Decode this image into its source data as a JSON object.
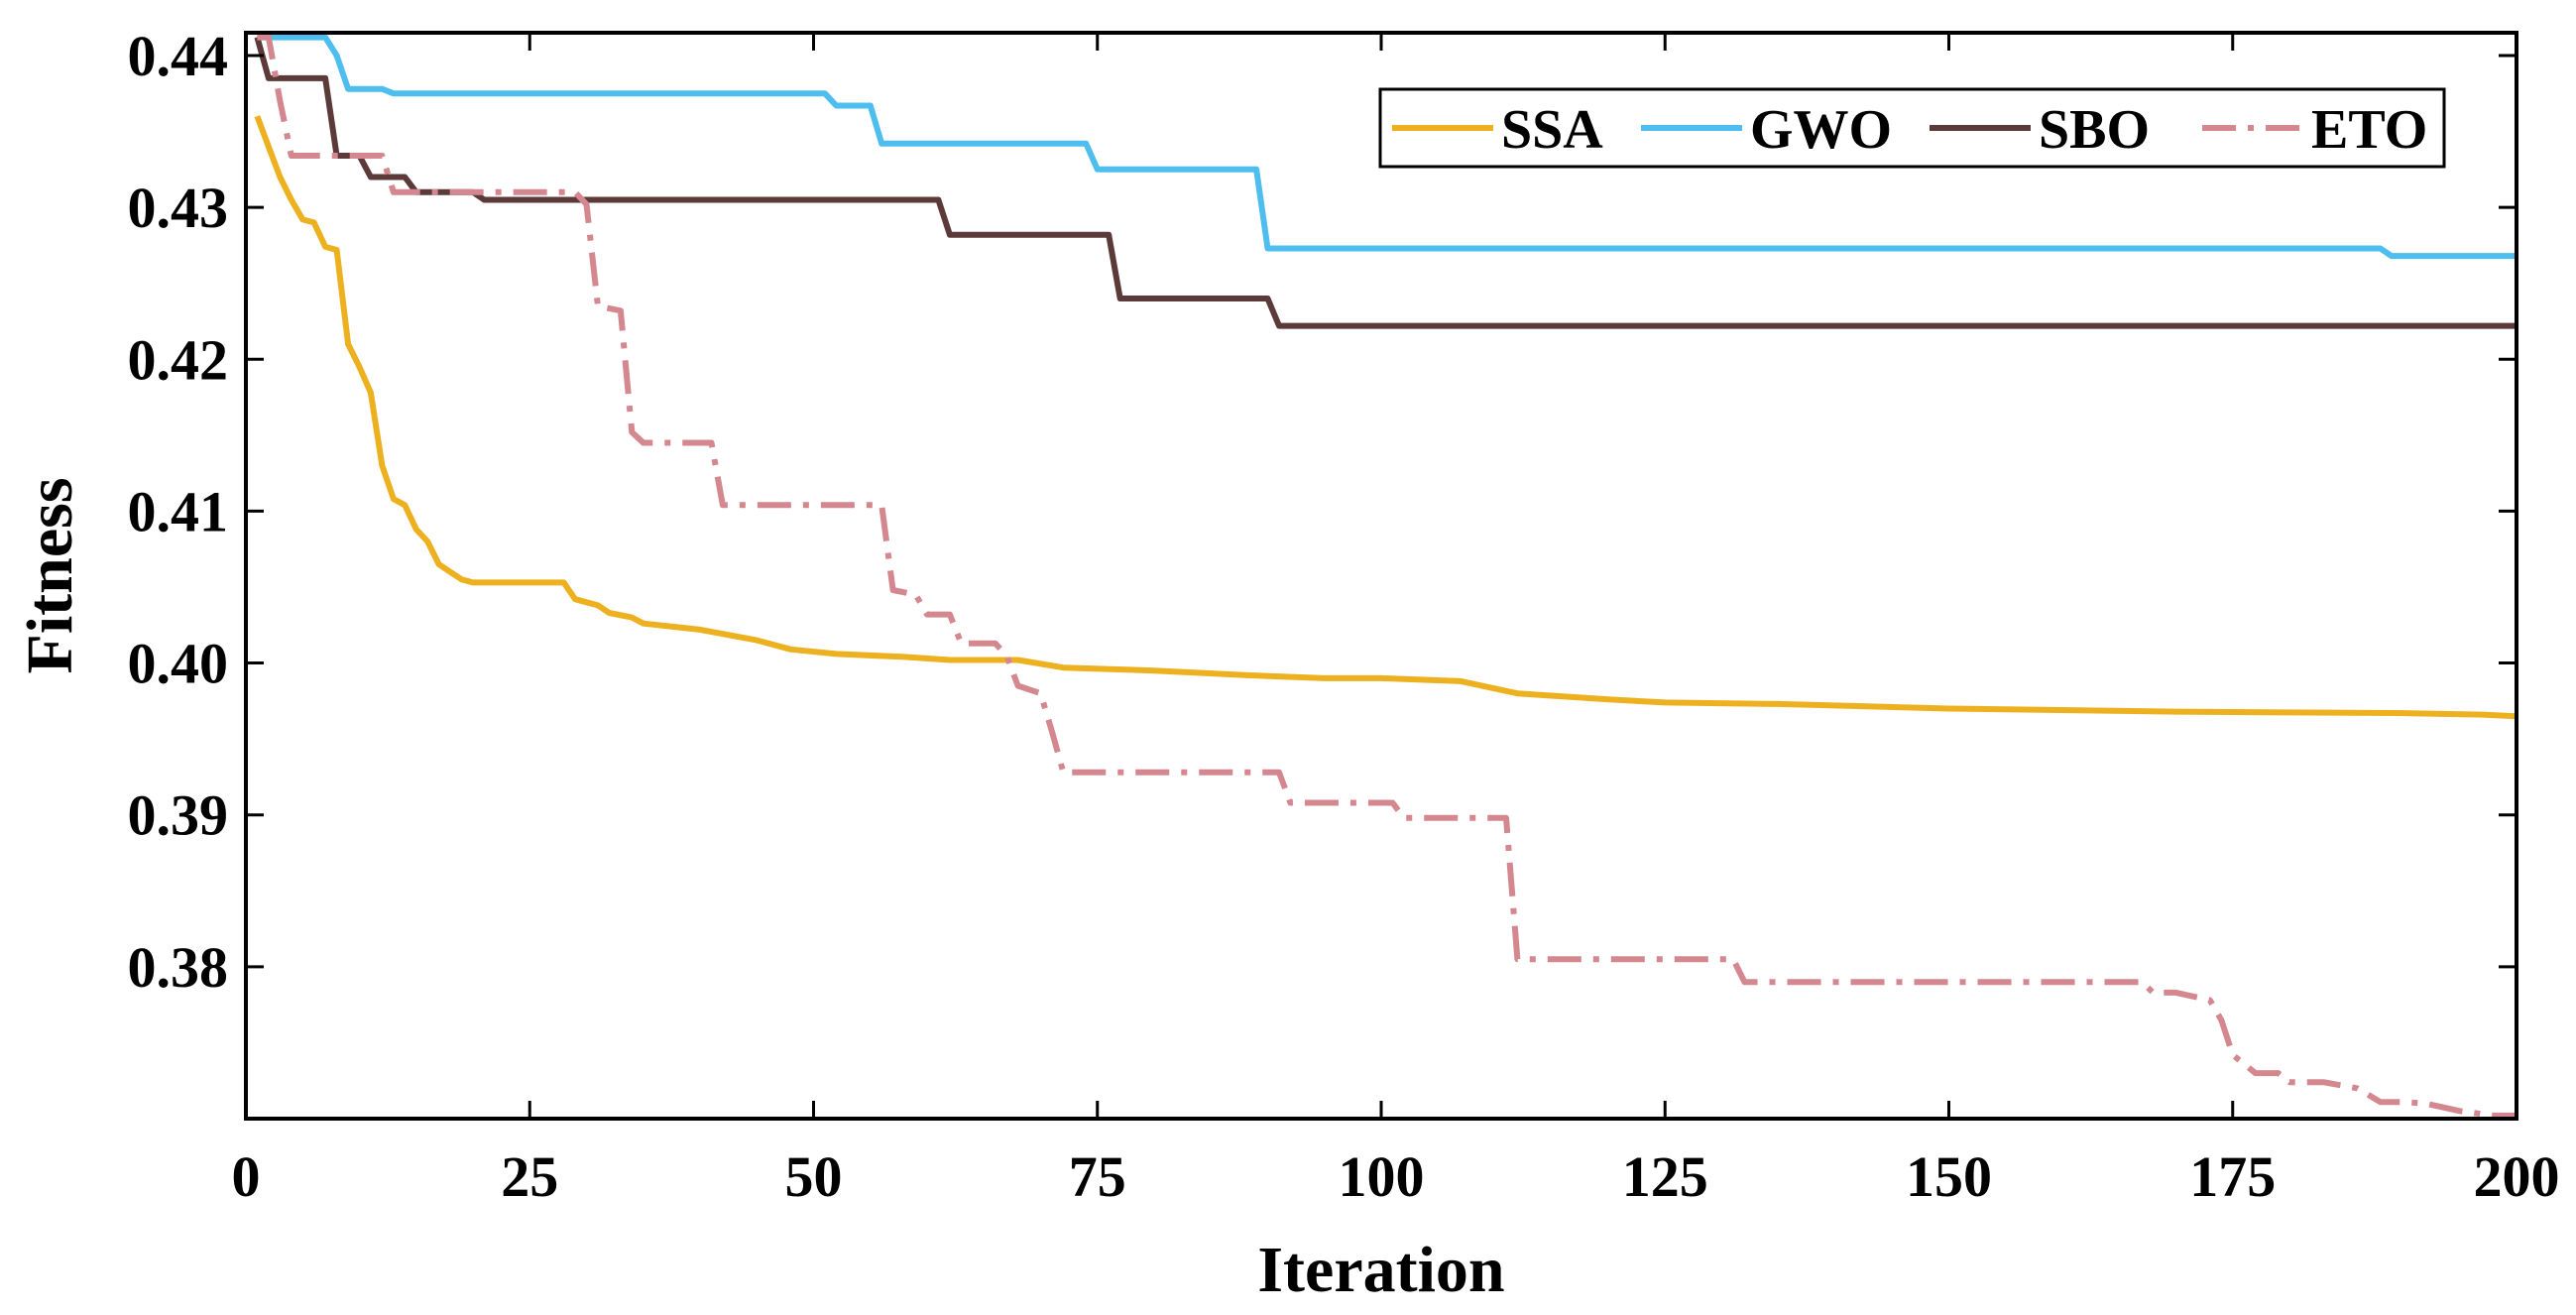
{
  "chart_data": {
    "type": "line",
    "title": "",
    "xlabel": "Iteration",
    "ylabel": "Fitness",
    "xlim": [
      0,
      200
    ],
    "ylim": [
      0.37,
      0.4415
    ],
    "xticks": [
      0,
      25,
      50,
      75,
      100,
      125,
      150,
      175,
      200
    ],
    "xtick_labels": [
      "0",
      "25",
      "50",
      "75",
      "100",
      "125",
      "150",
      "175",
      "200"
    ],
    "yticks": [
      0.38,
      0.39,
      0.4,
      0.41,
      0.42,
      0.43,
      0.44
    ],
    "ytick_labels": [
      "0.38",
      "0.39",
      "0.40",
      "0.41",
      "0.42",
      "0.43",
      "0.44"
    ],
    "grid": false,
    "legend_position": "top-right",
    "series": [
      {
        "name": "SSA",
        "color": "#EDB120",
        "dash": "solid",
        "points": [
          [
            1,
            0.436
          ],
          [
            2,
            0.434
          ],
          [
            3,
            0.432
          ],
          [
            4,
            0.4305
          ],
          [
            5,
            0.4292
          ],
          [
            6,
            0.429
          ],
          [
            7,
            0.4274
          ],
          [
            8,
            0.4272
          ],
          [
            9,
            0.421
          ],
          [
            10,
            0.4195
          ],
          [
            11,
            0.4178
          ],
          [
            12,
            0.413
          ],
          [
            13,
            0.4108
          ],
          [
            14,
            0.4104
          ],
          [
            15,
            0.4088
          ],
          [
            16,
            0.408
          ],
          [
            17,
            0.4065
          ],
          [
            18,
            0.406
          ],
          [
            19,
            0.4055
          ],
          [
            20,
            0.4053
          ],
          [
            28,
            0.4053
          ],
          [
            29,
            0.4042
          ],
          [
            30,
            0.404
          ],
          [
            31,
            0.4038
          ],
          [
            32,
            0.4033
          ],
          [
            34,
            0.403
          ],
          [
            35,
            0.4026
          ],
          [
            40,
            0.4022
          ],
          [
            45,
            0.4015
          ],
          [
            48,
            0.4009
          ],
          [
            52,
            0.4006
          ],
          [
            58,
            0.4004
          ],
          [
            62,
            0.4002
          ],
          [
            68,
            0.4002
          ],
          [
            72,
            0.3997
          ],
          [
            80,
            0.3995
          ],
          [
            88,
            0.3992
          ],
          [
            95,
            0.399
          ],
          [
            100,
            0.399
          ],
          [
            107,
            0.3988
          ],
          [
            112,
            0.398
          ],
          [
            120,
            0.3976
          ],
          [
            125,
            0.3974
          ],
          [
            135,
            0.3973
          ],
          [
            150,
            0.397
          ],
          [
            170,
            0.3968
          ],
          [
            190,
            0.3967
          ],
          [
            197,
            0.3966
          ],
          [
            200,
            0.3965
          ]
        ]
      },
      {
        "name": "GWO",
        "color": "#4DBEEE",
        "dash": "solid",
        "points": [
          [
            1,
            0.4412
          ],
          [
            7,
            0.4412
          ],
          [
            8,
            0.44
          ],
          [
            9,
            0.4378
          ],
          [
            12,
            0.4378
          ],
          [
            13,
            0.4375
          ],
          [
            51,
            0.4375
          ],
          [
            52,
            0.4367
          ],
          [
            55,
            0.4367
          ],
          [
            56,
            0.4342
          ],
          [
            74,
            0.4342
          ],
          [
            75,
            0.4325
          ],
          [
            89,
            0.4325
          ],
          [
            90,
            0.4273
          ],
          [
            188,
            0.4273
          ],
          [
            189,
            0.4268
          ],
          [
            200,
            0.4268
          ]
        ]
      },
      {
        "name": "SBO",
        "color": "#5C3A3A",
        "dash": "solid",
        "points": [
          [
            1,
            0.4412
          ],
          [
            2,
            0.4385
          ],
          [
            7,
            0.4385
          ],
          [
            8,
            0.4334
          ],
          [
            10,
            0.4334
          ],
          [
            11,
            0.432
          ],
          [
            14,
            0.432
          ],
          [
            15,
            0.431
          ],
          [
            20,
            0.431
          ],
          [
            21,
            0.4305
          ],
          [
            61,
            0.4305
          ],
          [
            62,
            0.4282
          ],
          [
            76,
            0.4282
          ],
          [
            77,
            0.424
          ],
          [
            90,
            0.424
          ],
          [
            91,
            0.4222
          ],
          [
            200,
            0.4222
          ]
        ]
      },
      {
        "name": "ETO",
        "color": "#D4878F",
        "dash": "dashdot",
        "points": [
          [
            1,
            0.4412
          ],
          [
            2,
            0.4412
          ],
          [
            3,
            0.437
          ],
          [
            4,
            0.4334
          ],
          [
            12,
            0.4334
          ],
          [
            13,
            0.431
          ],
          [
            29,
            0.431
          ],
          [
            30,
            0.4302
          ],
          [
            31,
            0.4235
          ],
          [
            33,
            0.4232
          ],
          [
            34,
            0.4152
          ],
          [
            35,
            0.4145
          ],
          [
            41,
            0.4145
          ],
          [
            42,
            0.4104
          ],
          [
            56,
            0.4104
          ],
          [
            57,
            0.4048
          ],
          [
            59,
            0.4045
          ],
          [
            60,
            0.4032
          ],
          [
            62,
            0.4032
          ],
          [
            63,
            0.4013
          ],
          [
            66,
            0.4013
          ],
          [
            67,
            0.4005
          ],
          [
            68,
            0.3985
          ],
          [
            70,
            0.398
          ],
          [
            71,
            0.3955
          ],
          [
            72,
            0.3928
          ],
          [
            91,
            0.3928
          ],
          [
            92,
            0.3908
          ],
          [
            101,
            0.3908
          ],
          [
            102,
            0.3898
          ],
          [
            111,
            0.3898
          ],
          [
            112,
            0.3805
          ],
          [
            131,
            0.3805
          ],
          [
            132,
            0.379
          ],
          [
            167,
            0.379
          ],
          [
            168,
            0.3783
          ],
          [
            170,
            0.3783
          ],
          [
            173,
            0.3778
          ],
          [
            174,
            0.3765
          ],
          [
            175,
            0.3742
          ],
          [
            177,
            0.373
          ],
          [
            179,
            0.373
          ],
          [
            180,
            0.3724
          ],
          [
            183,
            0.3724
          ],
          [
            186,
            0.372
          ],
          [
            188,
            0.3711
          ],
          [
            190,
            0.3711
          ],
          [
            192,
            0.371
          ],
          [
            195,
            0.3705
          ],
          [
            198,
            0.3702
          ],
          [
            200,
            0.3702
          ]
        ]
      }
    ]
  }
}
